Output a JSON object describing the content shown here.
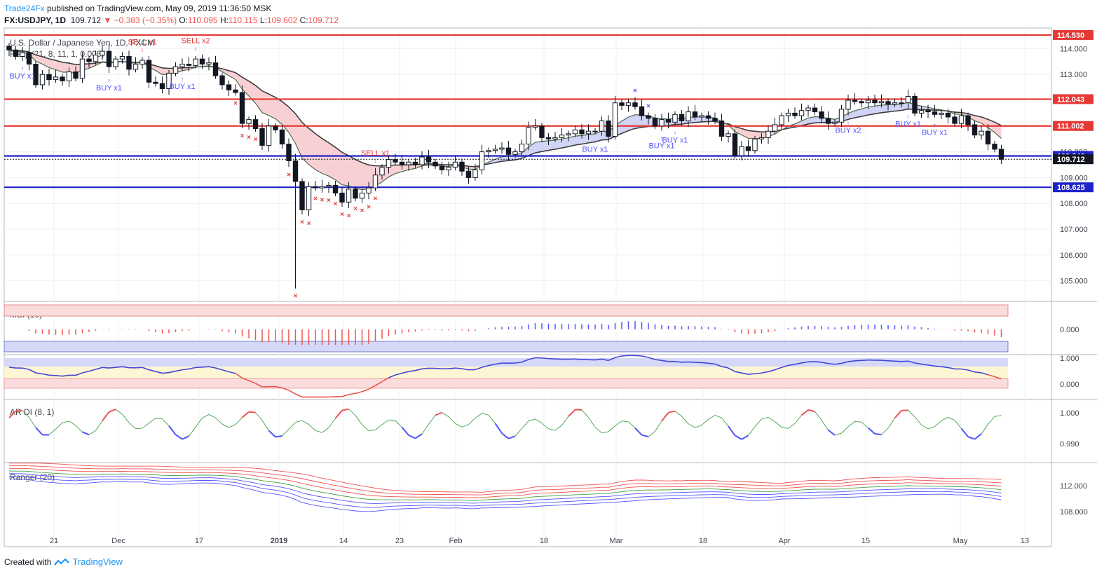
{
  "header": {
    "brand": "Trade24Fx",
    "published": "published on TradingView.com, May 09, 2019 11:36:50 MSK",
    "symbol": "FX:USDJPY, 1D",
    "last": "109.712",
    "change": "−0.383 (−0.35%)",
    "o_label": "O:",
    "o": "110.095",
    "h_label": "H:",
    "h": "110.115",
    "l_label": "L:",
    "l": "109.602",
    "c_label": "C:",
    "c": "109.712"
  },
  "footer": {
    "created_with": "Created with",
    "brand": "TradingView"
  },
  "colors": {
    "red_level": "#e53935",
    "blue_level": "#1e22c8",
    "bear": "#131722",
    "bull": "#ffffff",
    "msi_up": "#5353ff",
    "msi_down": "#ef5350",
    "tdi": "#4545d8"
  },
  "chart_data": {
    "type": "candlestick",
    "title": "U.S. Dollar / Japanese Yen, 1D, FXCM",
    "indicator_main": "Renji (21, 8, 11, 1, 0.005)",
    "price_axis": {
      "range": [
        104.2,
        114.8
      ],
      "ticks": [
        "114.000",
        "113.000",
        "112.000",
        "111.000",
        "110.000",
        "109.000",
        "108.000",
        "107.000",
        "106.000",
        "105.000"
      ]
    },
    "levels": [
      {
        "price": 114.53,
        "label": "114.530",
        "color": "red"
      },
      {
        "price": 112.043,
        "label": "112.043",
        "color": "red"
      },
      {
        "price": 111.002,
        "label": "111.002",
        "color": "red"
      },
      {
        "price": 109.84,
        "label": "109.840",
        "color": "blue"
      },
      {
        "price": 108.625,
        "label": "108.625",
        "color": "blue"
      }
    ],
    "last_price": {
      "price": 109.712,
      "label": "109.712"
    },
    "x_axis": {
      "labels": [
        "21",
        "Dec",
        "17",
        "2019",
        "14",
        "23",
        "Feb",
        "18",
        "Mar",
        "18",
        "Apr",
        "15",
        "May",
        "13"
      ]
    },
    "close": [
      113.95,
      113.7,
      113.85,
      113.4,
      112.6,
      113.0,
      112.8,
      112.9,
      112.75,
      113.1,
      112.85,
      113.6,
      113.5,
      113.75,
      113.9,
      113.3,
      113.6,
      113.7,
      113.2,
      113.4,
      113.55,
      112.7,
      112.65,
      112.45,
      113.05,
      113.3,
      113.4,
      113.35,
      113.6,
      113.4,
      113.45,
      112.95,
      112.6,
      112.4,
      112.3,
      111.1,
      111.25,
      110.9,
      110.25,
      111.0,
      110.85,
      110.3,
      109.65,
      108.85,
      107.75,
      108.65,
      108.6,
      108.65,
      108.7,
      108.4,
      108.05,
      108.55,
      108.2,
      108.4,
      108.6,
      109.1,
      109.4,
      109.7,
      109.6,
      109.5,
      109.6,
      109.5,
      109.8,
      109.6,
      109.45,
      109.3,
      109.4,
      109.6,
      109.25,
      109.0,
      109.3,
      110.0,
      110.05,
      110.1,
      110.15,
      109.9,
      110.0,
      110.3,
      110.95,
      111.0,
      110.55,
      110.5,
      110.55,
      110.65,
      110.7,
      110.85,
      110.7,
      110.8,
      110.8,
      111.2,
      110.6,
      111.9,
      111.8,
      111.9,
      111.75,
      111.4,
      111.3,
      111.0,
      111.25,
      111.15,
      111.45,
      111.2,
      111.55,
      111.35,
      111.4,
      111.3,
      111.2,
      110.6,
      110.7,
      109.85,
      110.2,
      110.05,
      110.5,
      110.55,
      110.8,
      111.05,
      111.4,
      111.5,
      111.4,
      111.6,
      111.7,
      111.55,
      111.3,
      111.1,
      111.15,
      111.65,
      112.0,
      111.95,
      111.9,
      112.0,
      111.9,
      111.95,
      111.85,
      111.9,
      111.9,
      112.15,
      111.5,
      111.6,
      111.55,
      111.45,
      111.5,
      111.35,
      111.1,
      111.4,
      111.05,
      110.65,
      110.8,
      110.3,
      110.1,
      109.71
    ]
  }
}
